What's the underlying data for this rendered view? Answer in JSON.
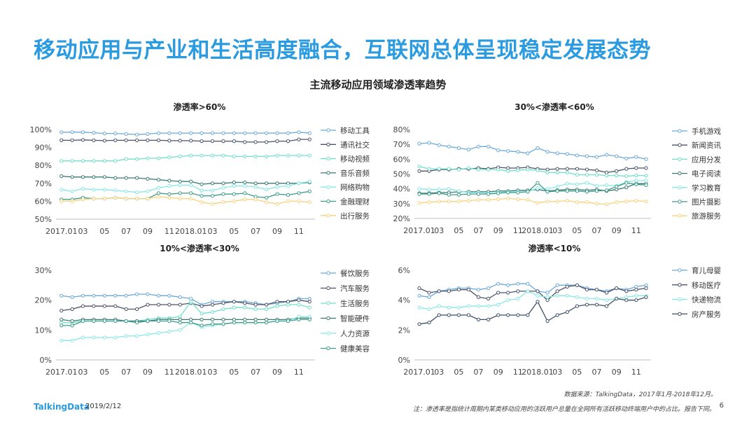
{
  "page": {
    "title": "移动应用与产业和生活高度融合，互联网总体呈现稳定发展态势",
    "subtitle": "主流移动应用领域渗透率趋势",
    "source": "数据来源：TalkingData，2017年1月-2018年12月。",
    "note": "注：渗透率是指统计周期内某类移动应用的活跃用户总量在全网所有活跃移动终端用户中的占比。报告下同。",
    "logo": "TalkingData",
    "date": "2019/2/12",
    "page_number": "6"
  },
  "chart_data": [
    {
      "type": "line",
      "title": "渗透率>60%",
      "xticks": [
        "2017.01",
        "03",
        "05",
        "07",
        "09",
        "11",
        "2018.01",
        "03",
        "05",
        "07",
        "09",
        "11"
      ],
      "ylim": [
        50,
        100
      ],
      "yticks": [
        50,
        60,
        70,
        80,
        90,
        100
      ],
      "ytick_labels": [
        "50%",
        "60%",
        "70%",
        "80%",
        "90%",
        "100%"
      ],
      "legend_position": "right",
      "series": [
        {
          "name": "移动工具",
          "color": "#6ba9d9",
          "values": [
            98.5,
            98.5,
            98.5,
            98.2,
            97.8,
            97.8,
            97.5,
            97.2,
            97.5,
            98.0,
            98.0,
            98.0,
            98.0,
            98.0,
            98.0,
            98.0,
            98.0,
            98.0,
            98.0,
            98.0,
            98.0,
            98.0,
            98.5,
            98.0
          ]
        },
        {
          "name": "通讯社交",
          "color": "#4a5368",
          "values": [
            94.0,
            94.0,
            94.2,
            94.0,
            93.8,
            94.0,
            94.0,
            94.0,
            94.0,
            94.0,
            93.8,
            93.8,
            93.8,
            93.5,
            93.5,
            93.5,
            93.5,
            93.0,
            93.0,
            93.0,
            93.5,
            93.5,
            94.5,
            94.5
          ]
        },
        {
          "name": "移动视频",
          "color": "#6fe0c8",
          "values": [
            82.5,
            82.5,
            82.5,
            82.5,
            82.5,
            82.5,
            83.5,
            83.5,
            84.0,
            84.0,
            84.5,
            85.0,
            85.5,
            85.5,
            85.5,
            85.5,
            85.0,
            85.0,
            85.0,
            85.0,
            85.5,
            85.5,
            85.5,
            85.5
          ]
        },
        {
          "name": "音乐音频",
          "color": "#3b7a70",
          "values": [
            74.0,
            73.5,
            73.5,
            73.5,
            73.5,
            73.0,
            73.0,
            73.0,
            72.5,
            72.0,
            71.5,
            71.0,
            71.0,
            69.5,
            70.0,
            70.0,
            70.5,
            70.5,
            70.0,
            70.0,
            70.0,
            70.0,
            70.0,
            70.5
          ]
        },
        {
          "name": "网络购物",
          "color": "#86e8e6",
          "values": [
            66.5,
            65.5,
            67.0,
            66.5,
            66.5,
            66.0,
            65.5,
            65.0,
            65.5,
            67.5,
            68.5,
            69.0,
            69.0,
            66.0,
            66.0,
            67.5,
            68.5,
            68.5,
            68.0,
            66.5,
            68.0,
            68.5,
            70.0,
            71.0
          ]
        },
        {
          "name": "金融理财",
          "color": "#3e9c8a",
          "values": [
            61.0,
            61.0,
            62.0,
            61.5,
            61.5,
            62.0,
            61.5,
            61.5,
            61.5,
            64.5,
            64.0,
            64.5,
            64.5,
            63.0,
            63.0,
            64.0,
            64.0,
            64.5,
            62.5,
            62.0,
            64.0,
            63.5,
            64.5,
            65.5
          ]
        },
        {
          "name": "出行服务",
          "color": "#f8d27a",
          "values": [
            60.0,
            60.0,
            61.0,
            61.5,
            61.5,
            62.0,
            61.5,
            61.5,
            61.5,
            62.5,
            62.0,
            61.5,
            61.5,
            59.5,
            58.5,
            59.5,
            60.0,
            61.0,
            61.0,
            59.5,
            58.5,
            60.0,
            60.0,
            59.5
          ]
        }
      ]
    },
    {
      "type": "line",
      "title": "30%<渗透率<60%",
      "xticks": [
        "2017.01",
        "03",
        "05",
        "07",
        "09",
        "11",
        "2018.01",
        "03",
        "05",
        "07",
        "09",
        "11"
      ],
      "ylim": [
        20,
        80
      ],
      "yticks": [
        20,
        30,
        40,
        50,
        60,
        70,
        80
      ],
      "ytick_labels": [
        "20%",
        "30%",
        "40%",
        "50%",
        "60%",
        "70%",
        "80%"
      ],
      "legend_position": "right",
      "series": [
        {
          "name": "手机游戏",
          "color": "#6ba9d9",
          "values": [
            70.5,
            71.0,
            69.5,
            68.5,
            67.5,
            66.5,
            68.5,
            68.5,
            66.0,
            65.5,
            65.0,
            64.0,
            67.5,
            65.0,
            64.0,
            63.5,
            62.5,
            62.0,
            61.5,
            63.0,
            62.0,
            60.5,
            61.5,
            60.0
          ]
        },
        {
          "name": "新闻资讯",
          "color": "#4a5368",
          "values": [
            52.0,
            52.0,
            53.0,
            53.0,
            53.5,
            53.5,
            54.0,
            53.5,
            54.5,
            54.0,
            54.0,
            54.5,
            53.5,
            53.0,
            53.5,
            53.5,
            53.5,
            53.0,
            52.5,
            51.0,
            52.0,
            53.5,
            54.0,
            54.0
          ]
        },
        {
          "name": "应用分发",
          "color": "#6fe0c8",
          "values": [
            55.0,
            53.5,
            53.5,
            53.5,
            53.0,
            54.0,
            53.0,
            53.0,
            53.0,
            52.0,
            52.5,
            53.0,
            52.5,
            51.0,
            51.0,
            51.0,
            49.5,
            49.5,
            49.5,
            49.0,
            49.0,
            48.5,
            49.0,
            49.0
          ]
        },
        {
          "name": "电子阅读",
          "color": "#3b7a70",
          "values": [
            37.0,
            37.0,
            37.5,
            37.5,
            38.0,
            38.0,
            38.0,
            38.0,
            38.5,
            38.5,
            39.0,
            39.0,
            39.5,
            38.5,
            39.0,
            39.5,
            39.5,
            39.0,
            39.5,
            38.5,
            39.5,
            41.0,
            43.5,
            43.5
          ]
        },
        {
          "name": "学习教育",
          "color": "#86e8e6",
          "values": [
            40.0,
            39.5,
            39.5,
            40.0,
            38.5,
            37.5,
            37.5,
            37.0,
            37.5,
            38.0,
            38.0,
            38.0,
            40.5,
            40.0,
            41.5,
            43.5,
            43.0,
            44.0,
            42.0,
            42.5,
            42.0,
            44.5,
            45.5,
            45.5
          ]
        },
        {
          "name": "图片摄影",
          "color": "#3e9c8a",
          "values": [
            36.5,
            36.5,
            37.0,
            36.0,
            36.0,
            36.5,
            36.5,
            36.5,
            37.0,
            37.5,
            37.5,
            38.0,
            44.0,
            38.0,
            38.5,
            38.5,
            38.5,
            38.0,
            38.5,
            39.0,
            41.5,
            44.0,
            43.0,
            42.5
          ]
        },
        {
          "name": "旅游服务",
          "color": "#f8d27a",
          "values": [
            30.5,
            31.0,
            31.5,
            31.5,
            31.5,
            32.0,
            32.5,
            32.5,
            33.0,
            33.5,
            33.0,
            32.5,
            30.5,
            31.5,
            31.5,
            32.0,
            31.0,
            31.0,
            30.0,
            29.5,
            31.0,
            31.5,
            32.0,
            31.5
          ]
        }
      ]
    },
    {
      "type": "line",
      "title": "10%<渗透率<30%",
      "xticks": [
        "2017.01",
        "03",
        "05",
        "07",
        "09",
        "11",
        "2018.01",
        "03",
        "05",
        "07",
        "09",
        "11"
      ],
      "ylim": [
        0,
        30
      ],
      "yticks": [
        0,
        10,
        20,
        30
      ],
      "ytick_labels": [
        "0%",
        "10%",
        "20%",
        "30%"
      ],
      "legend_position": "right",
      "series": [
        {
          "name": "餐饮服务",
          "color": "#6ba9d9",
          "values": [
            21.5,
            21.0,
            21.5,
            21.5,
            21.5,
            21.5,
            21.5,
            22.0,
            22.0,
            21.5,
            21.5,
            21.0,
            20.5,
            18.5,
            19.5,
            19.5,
            19.5,
            19.5,
            19.0,
            18.5,
            19.0,
            19.5,
            20.5,
            20.5
          ]
        },
        {
          "name": "汽车服务",
          "color": "#4a5368",
          "values": [
            16.5,
            17.0,
            18.0,
            18.0,
            18.0,
            18.0,
            17.0,
            17.0,
            18.5,
            18.5,
            18.5,
            18.5,
            19.0,
            18.0,
            18.5,
            19.0,
            19.5,
            19.0,
            18.5,
            18.5,
            19.5,
            19.5,
            20.0,
            19.5
          ]
        },
        {
          "name": "生活服务",
          "color": "#6fe0c8",
          "values": [
            12.5,
            12.5,
            13.0,
            13.0,
            13.0,
            13.0,
            13.0,
            13.0,
            13.5,
            14.0,
            14.0,
            14.5,
            19.5,
            15.5,
            16.0,
            17.0,
            17.5,
            17.5,
            17.0,
            17.0,
            18.0,
            18.5,
            18.5,
            17.5
          ]
        },
        {
          "name": "智能硬件",
          "color": "#3b7a70",
          "values": [
            13.5,
            13.0,
            13.5,
            13.5,
            13.5,
            13.5,
            13.0,
            13.0,
            13.0,
            13.5,
            13.5,
            13.5,
            13.5,
            13.5,
            13.5,
            13.5,
            13.5,
            13.5,
            13.5,
            13.5,
            13.5,
            13.5,
            14.0,
            14.0
          ]
        },
        {
          "name": "人力资源",
          "color": "#86e8e6",
          "values": [
            6.5,
            6.5,
            7.5,
            7.5,
            7.5,
            7.5,
            8.0,
            8.0,
            8.5,
            9.0,
            9.5,
            10.0,
            12.5,
            11.0,
            11.5,
            12.0,
            12.5,
            12.5,
            12.5,
            12.5,
            13.0,
            13.0,
            14.5,
            14.5
          ]
        },
        {
          "name": "健康美容",
          "color": "#3e9c8a",
          "values": [
            11.5,
            11.5,
            13.0,
            13.0,
            13.0,
            13.0,
            13.0,
            12.5,
            13.0,
            13.0,
            13.0,
            12.5,
            12.5,
            11.5,
            12.0,
            12.0,
            12.5,
            12.5,
            12.5,
            12.5,
            13.0,
            13.0,
            13.5,
            13.5
          ]
        }
      ]
    },
    {
      "type": "line",
      "title": "渗透率<10%",
      "xticks": [
        "2017.01",
        "03",
        "05",
        "07",
        "09",
        "11",
        "2018.01",
        "03",
        "05",
        "07",
        "09",
        "11"
      ],
      "ylim": [
        0,
        6
      ],
      "yticks": [
        0,
        2,
        4,
        6
      ],
      "ytick_labels": [
        "0%",
        "2%",
        "4%",
        "6%"
      ],
      "legend_position": "right",
      "series": [
        {
          "name": "育儿母婴",
          "color": "#6ba9d9",
          "values": [
            4.3,
            4.2,
            4.6,
            4.7,
            4.8,
            4.8,
            4.7,
            4.8,
            5.1,
            5.0,
            5.1,
            5.1,
            4.6,
            4.5,
            5.0,
            5.0,
            5.0,
            4.8,
            4.7,
            4.6,
            4.8,
            4.7,
            4.9,
            5.0
          ]
        },
        {
          "name": "移动医疗",
          "color": "#4a5368",
          "values": [
            4.8,
            4.5,
            4.6,
            4.6,
            4.7,
            4.7,
            4.2,
            4.1,
            4.5,
            4.5,
            4.6,
            4.6,
            4.6,
            4.0,
            4.6,
            4.9,
            5.0,
            4.7,
            4.7,
            4.5,
            4.8,
            4.6,
            4.7,
            4.8
          ]
        },
        {
          "name": "快递物流",
          "color": "#86e8e6",
          "values": [
            3.5,
            3.4,
            3.6,
            3.5,
            3.5,
            3.6,
            3.6,
            3.6,
            3.7,
            4.0,
            4.1,
            4.6,
            4.3,
            4.2,
            4.3,
            4.3,
            4.2,
            4.1,
            4.1,
            4.0,
            4.1,
            4.2,
            4.3,
            4.3
          ]
        },
        {
          "name": "房产服务",
          "color": "#3b5168",
          "values": [
            2.4,
            2.5,
            3.0,
            3.0,
            3.0,
            3.0,
            2.7,
            2.7,
            3.0,
            3.0,
            3.0,
            3.0,
            3.9,
            2.6,
            3.0,
            3.2,
            3.6,
            3.7,
            3.7,
            3.6,
            4.1,
            4.0,
            4.0,
            4.2
          ]
        }
      ]
    }
  ]
}
